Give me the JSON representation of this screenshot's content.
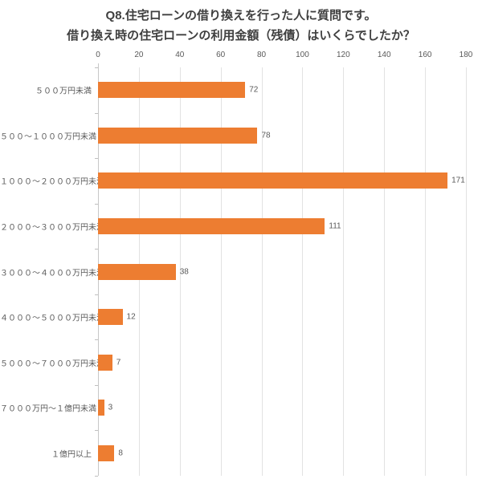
{
  "title": {
    "line1": "Q8.住宅ローンの借り換えを行った人に質問です。",
    "line2": "借り換え時の住宅ローンの利用金額（残債）はいくらでしたか？"
  },
  "chart_data": {
    "type": "bar",
    "orientation": "horizontal",
    "title": "Q8.住宅ローンの借り換えを行った人に質問です。借り換え時の住宅ローンの利用金額（残債）はいくらでしたか？",
    "categories": [
      "５００万円未満",
      "５００～１０００万円未満",
      "１０００～２０００万円未満",
      "２０００～３０００万円未満",
      "３０００～４０００万円未満",
      "４０００～５０００万円未満",
      "５０００～７０００万円未満",
      "７０００万円～１億円未満",
      "１億円以上"
    ],
    "values": [
      72,
      78,
      171,
      111,
      38,
      12,
      7,
      3,
      8
    ],
    "xlabel": "",
    "ylabel": "",
    "xlim": [
      0,
      180
    ],
    "x_ticks": [
      0,
      20,
      40,
      60,
      80,
      100,
      120,
      140,
      160,
      180
    ],
    "grid": true,
    "value_labels": true,
    "legend": "none",
    "colors": {
      "bar": "#ED7D31",
      "title_text": "#3F3F3F",
      "label_text": "#595959",
      "gridline": "#E2E2E2",
      "axis_line": "#C8C8C8",
      "background": "#FFFFFF"
    }
  }
}
